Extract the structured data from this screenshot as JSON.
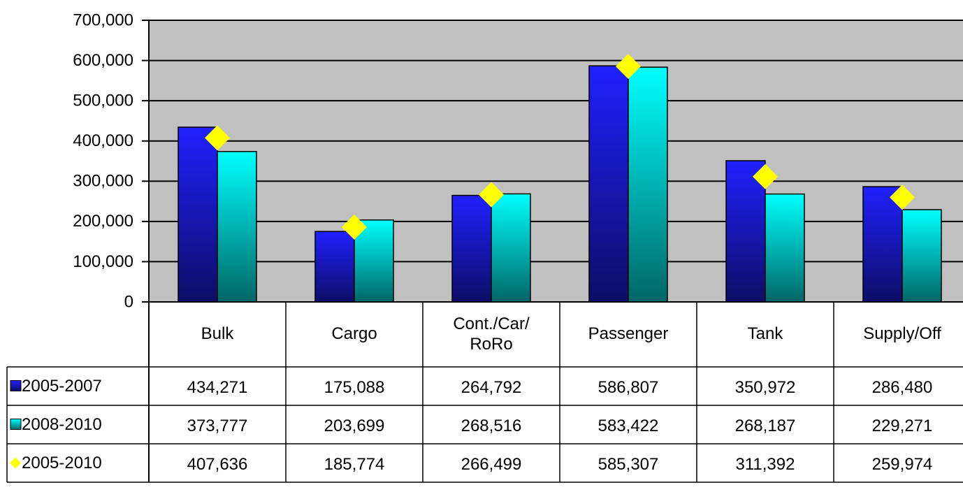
{
  "chart_data": {
    "type": "bar",
    "categories": [
      "Bulk",
      "Cargo",
      "Cont./Car/ RoRo",
      "Passenger",
      "Tank",
      "Supply/Off"
    ],
    "series": [
      {
        "name": "2005-2007",
        "color": "#2020ff",
        "values": [
          434271,
          175088,
          264792,
          586807,
          350972,
          286480
        ],
        "value_labels": [
          "434,271",
          "175,088",
          "264,792",
          "586,807",
          "350,972",
          "286,480"
        ]
      },
      {
        "name": "2008-2010",
        "color": "#00ffff",
        "values": [
          373777,
          203699,
          268516,
          583422,
          268187,
          229271
        ],
        "value_labels": [
          "373,777",
          "203,699",
          "268,516",
          "583,422",
          "268,187",
          "229,271"
        ]
      },
      {
        "name": "2005-2010",
        "color": "#ffff00",
        "marker": "diamond",
        "values": [
          407636,
          185774,
          266499,
          585307,
          311392,
          259974
        ],
        "value_labels": [
          "407,636",
          "185,774",
          "266,499",
          "585,307",
          "311,392",
          "259,974"
        ]
      }
    ],
    "ylim": [
      0,
      700000
    ],
    "yticks": [
      0,
      {
        "value": 100000,
        "label": "100,000"
      },
      {
        "value": 200000,
        "label": "200,000"
      },
      {
        "value": 300000,
        "label": "300,000"
      },
      {
        "value": 400000,
        "label": "400,000"
      },
      {
        "value": 500000,
        "label": "500,000"
      },
      {
        "value": 600000,
        "label": "600,000"
      },
      {
        "value": 700000,
        "label": "700,000"
      }
    ],
    "grid": true
  }
}
